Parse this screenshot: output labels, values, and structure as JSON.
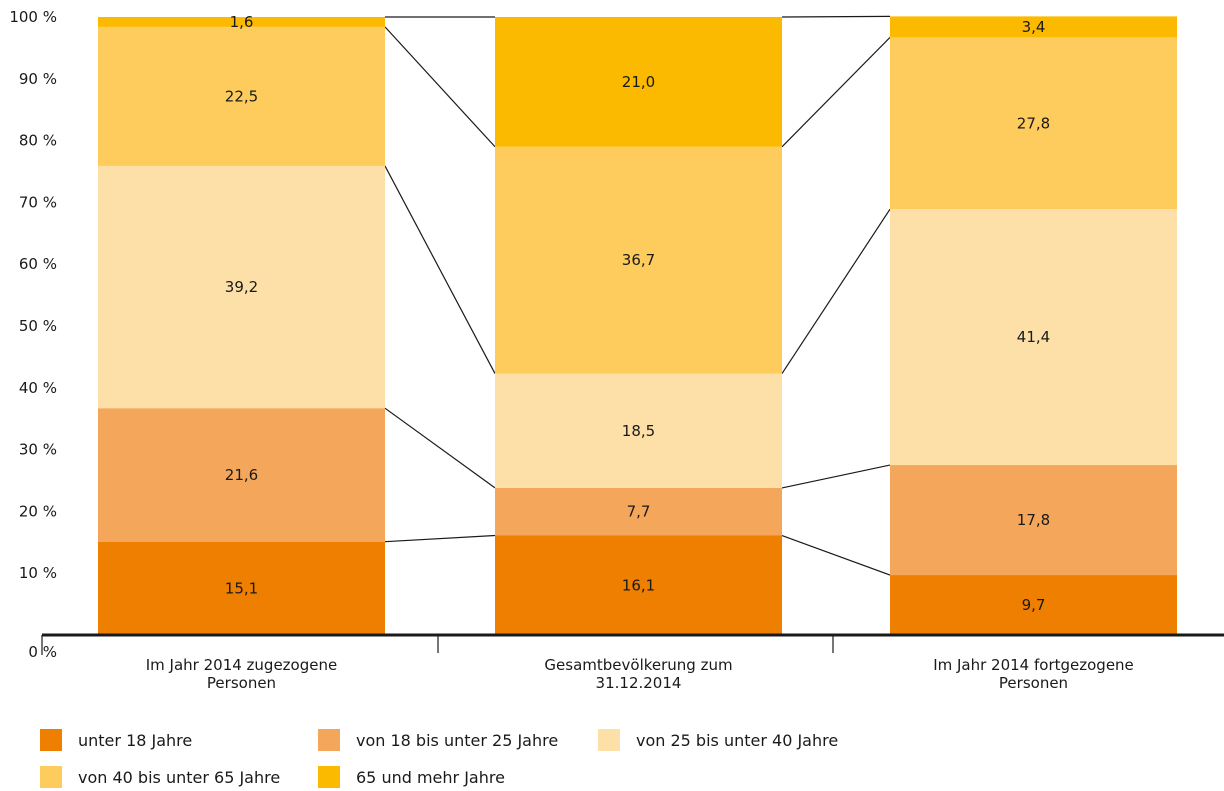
{
  "chart_data": {
    "type": "bar",
    "stacked": true,
    "categories": [
      [
        "Im Jahr 2014 zugezogene",
        "Personen"
      ],
      [
        "Gesamtbevölkerung zum",
        "31.12.2014"
      ],
      [
        "Im Jahr 2014 fortgezogene",
        "Personen"
      ]
    ],
    "series": [
      {
        "name": "unter 18 Jahre",
        "color": "#ee7f00",
        "values": [
          15.1,
          16.1,
          9.7
        ],
        "labels": [
          "15,1",
          "16,1",
          "9,7"
        ]
      },
      {
        "name": "von 18 bis unter 25 Jahre",
        "color": "#f4a75a",
        "values": [
          21.6,
          7.7,
          17.8
        ],
        "labels": [
          "21,6",
          "7,7",
          "17,8"
        ]
      },
      {
        "name": "von 25 bis unter 40 Jahre",
        "color": "#fde0a8",
        "values": [
          39.2,
          18.5,
          41.4
        ],
        "labels": [
          "39,2",
          "18,5",
          "41,4"
        ]
      },
      {
        "name": "von 40 bis unter 65 Jahre",
        "color": "#fdcc5c",
        "values": [
          22.5,
          36.7,
          27.8
        ],
        "labels": [
          "22,5",
          "36,7",
          "27,8"
        ]
      },
      {
        "name": "65 und mehr Jahre",
        "color": "#fbb900",
        "values": [
          1.6,
          21.0,
          3.4
        ],
        "labels": [
          "1,6",
          "21,0",
          "3,4"
        ]
      }
    ],
    "yticks": [
      "0 %",
      "10 %",
      "20 %",
      "30 %",
      "40 %",
      "50 %",
      "60 %",
      "70 %",
      "80 %",
      "90 %",
      "100 %"
    ],
    "ylim": [
      0,
      100
    ],
    "connector_lines": true,
    "legend_position": "bottom",
    "grid": false
  }
}
